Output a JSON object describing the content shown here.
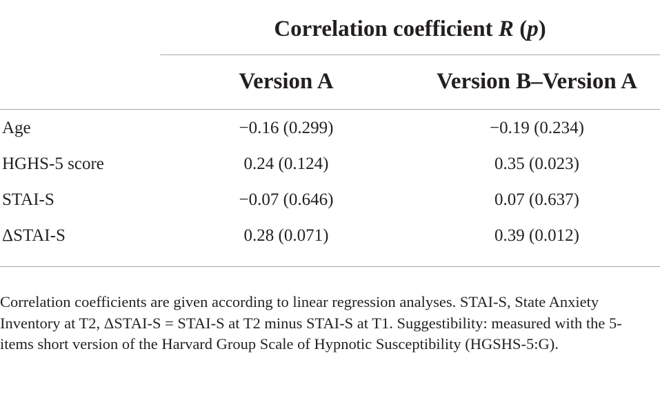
{
  "table": {
    "group_header": {
      "text": "Correlation coefficient ",
      "italic_symbol": "R",
      "paren_open": " (",
      "italic_p": "p",
      "paren_close": ")"
    },
    "columns": [
      "Version A",
      "Version B–Version A"
    ],
    "rows": [
      {
        "label": "Age",
        "values": [
          "−0.16 (0.299)",
          "−0.19 (0.234)"
        ]
      },
      {
        "label": "HGHS-5 score",
        "values": [
          "0.24 (0.124)",
          "0.35 (0.023)"
        ]
      },
      {
        "label": "STAI-S",
        "values": [
          "−0.07 (0.646)",
          "0.07 (0.637)"
        ]
      },
      {
        "label": "ΔSTAI-S",
        "values": [
          "0.28 (0.071)",
          "0.39 (0.012)"
        ]
      }
    ]
  },
  "footnote": "Correlation coefficients are given according to linear regression analyses. STAI-S, State Anxiety Inventory at T2, ΔSTAI-S = STAI-S at T2 minus STAI-S at T1. Suggestibility: measured with the 5-items short version of the Harvard Group Scale of Hypnotic Susceptibility (HGSHS-5:G)."
}
